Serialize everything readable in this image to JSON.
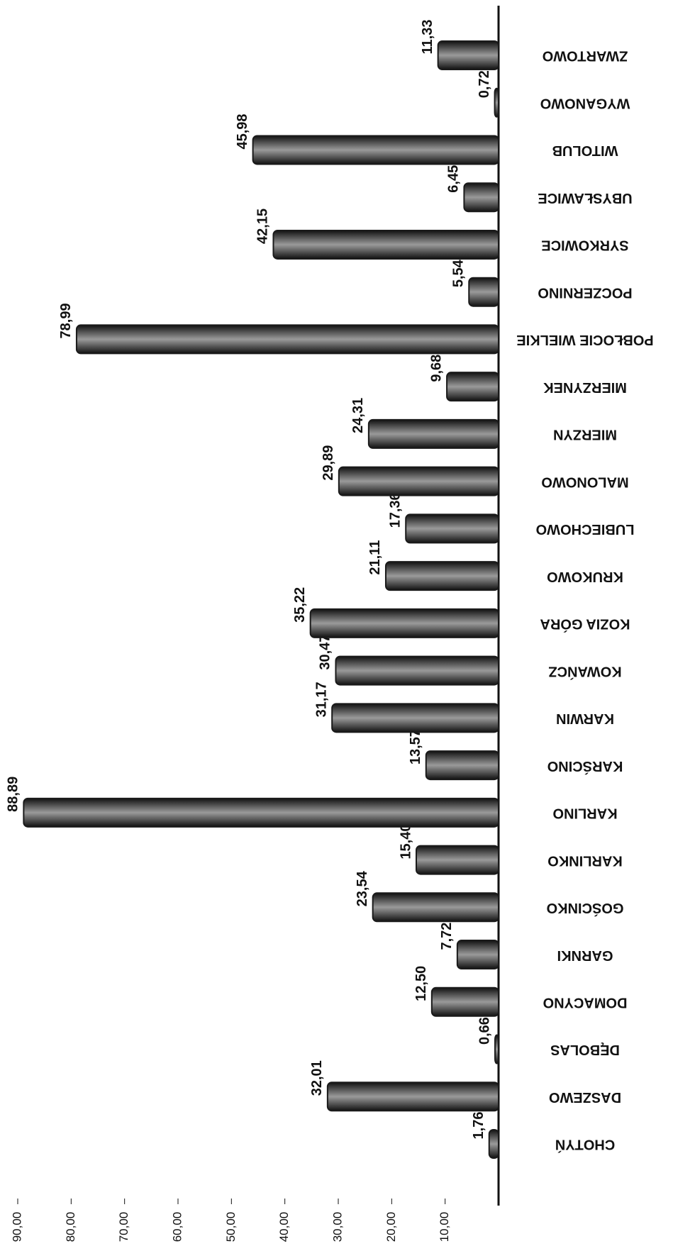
{
  "chart_data": {
    "type": "bar",
    "orientation": "rotated",
    "categories": [
      "CHOTYŃ",
      "DASZEWO",
      "DĘBOLAS",
      "DOMACYNO",
      "GARNKI",
      "GOŚCINKO",
      "KARLINKO",
      "KARLINO",
      "KARŚCINO",
      "KARWIN",
      "KOWAŃCZ",
      "KOZIA GÓRA",
      "KRUKOWO",
      "LUBIECHOWO",
      "MALONOWO",
      "MIERZYN",
      "MIERZYNEK",
      "POBŁOCIE WIELKIE",
      "POCZERNINO",
      "SYRKOWICE",
      "UBYSŁAWICE",
      "WITOLUB",
      "WYGANOWO",
      "ZWARTOWO"
    ],
    "values": [
      1.76,
      32.01,
      0.66,
      12.5,
      7.72,
      23.54,
      15.4,
      88.89,
      13.57,
      31.17,
      30.47,
      35.22,
      21.11,
      17.36,
      29.89,
      24.31,
      9.68,
      78.99,
      5.54,
      42.15,
      6.45,
      45.98,
      0.72,
      11.33
    ],
    "value_labels": [
      "1,76",
      "32,01",
      "0,66",
      "12,50",
      "7,72",
      "23,54",
      "15,40",
      "88,89",
      "13,57",
      "31,17",
      "30,47",
      "35,22",
      "21,11",
      "17,36",
      "29,89",
      "24,31",
      "9,68",
      "78,99",
      "5,54",
      "42,15",
      "6,45",
      "45,98",
      "0,72",
      "11,33"
    ],
    "color": "#1a1a1a",
    "ylim": [
      0,
      90
    ],
    "yticks": [
      {
        "value": 10,
        "label": "10,00"
      },
      {
        "value": 20,
        "label": "20,00"
      },
      {
        "value": 30,
        "label": "30,00"
      },
      {
        "value": 40,
        "label": "40,00"
      },
      {
        "value": 50,
        "label": "50,00"
      },
      {
        "value": 60,
        "label": "60,00"
      },
      {
        "value": 70,
        "label": "70,00"
      },
      {
        "value": 80,
        "label": "80,00"
      },
      {
        "value": 90,
        "label": "90,00"
      }
    ]
  }
}
